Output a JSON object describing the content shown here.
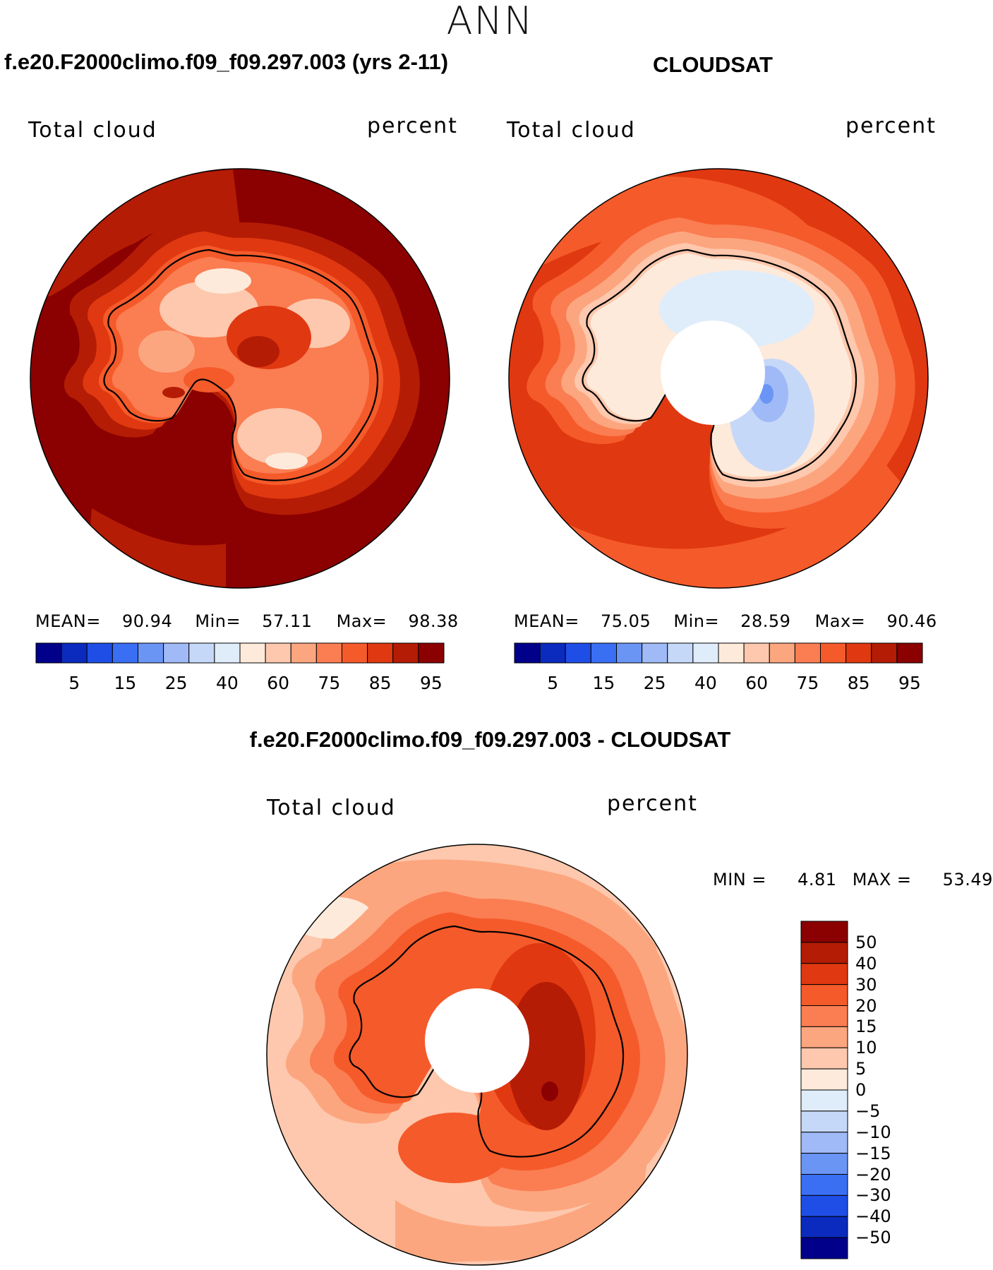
{
  "page": {
    "title": "ANN",
    "diff_title": "f.e20.F2000climo.f09_f09.297.003 - CLOUDSAT"
  },
  "panels": [
    {
      "title": "f.e20.F2000climo.f09_f09.297.003 (yrs 2-11)",
      "variable": "Total cloud",
      "units": "percent",
      "mean_label": "MEAN=",
      "mean": "90.94",
      "min_label": "Min=",
      "min": "57.11",
      "max_label": "Max=",
      "max": "98.38"
    },
    {
      "title": "CLOUDSAT",
      "variable": "Total cloud",
      "units": "percent",
      "mean_label": "MEAN=",
      "mean": "75.05",
      "min_label": "Min=",
      "min": "28.59",
      "max_label": "Max=",
      "max": "90.46"
    }
  ],
  "colorbar": {
    "tick_labels": [
      "5",
      "15",
      "25",
      "40",
      "60",
      "75",
      "85",
      "95"
    ],
    "colors": [
      "#00008b",
      "#0a2bbd",
      "#1f4ee6",
      "#3a6ff4",
      "#6b95f5",
      "#9fbaf6",
      "#c6d8f8",
      "#dfecfa",
      "#fdeadb",
      "#fdc8ad",
      "#fca67f",
      "#fb7d52",
      "#f55a2a",
      "#e03810",
      "#b41c05",
      "#8b0000"
    ]
  },
  "diff_panel": {
    "variable": "Total cloud",
    "units": "percent",
    "min_label": "MIN =",
    "min": "4.81",
    "max_label": "MAX =",
    "max": "53.49"
  },
  "diff_colorbar": {
    "tick_labels": [
      "50",
      "40",
      "30",
      "20",
      "15",
      "10",
      "5",
      "0",
      "−5",
      "−10",
      "−15",
      "−20",
      "−30",
      "−40",
      "−50"
    ],
    "colors": [
      "#8b0000",
      "#b41c05",
      "#e03810",
      "#f55a2a",
      "#fb7d52",
      "#fca67f",
      "#fdc8ad",
      "#fdeadb",
      "#dfecfa",
      "#c6d8f8",
      "#9fbaf6",
      "#6b95f5",
      "#3a6ff4",
      "#1f4ee6",
      "#0a2bbd",
      "#00008b"
    ]
  },
  "map_colors": {
    "darkest_red": "#8b0000",
    "dark_red": "#b41c05",
    "red": "#e03810",
    "red_orange": "#f55a2a",
    "orange": "#fb7d52",
    "salmon": "#fca67f",
    "peach": "#fdc8ad",
    "cream": "#fdeadb",
    "pale_blue": "#dfecfa",
    "light_blue": "#c6d8f8",
    "blue": "#9fbaf6",
    "mid_blue": "#6b95f5"
  }
}
